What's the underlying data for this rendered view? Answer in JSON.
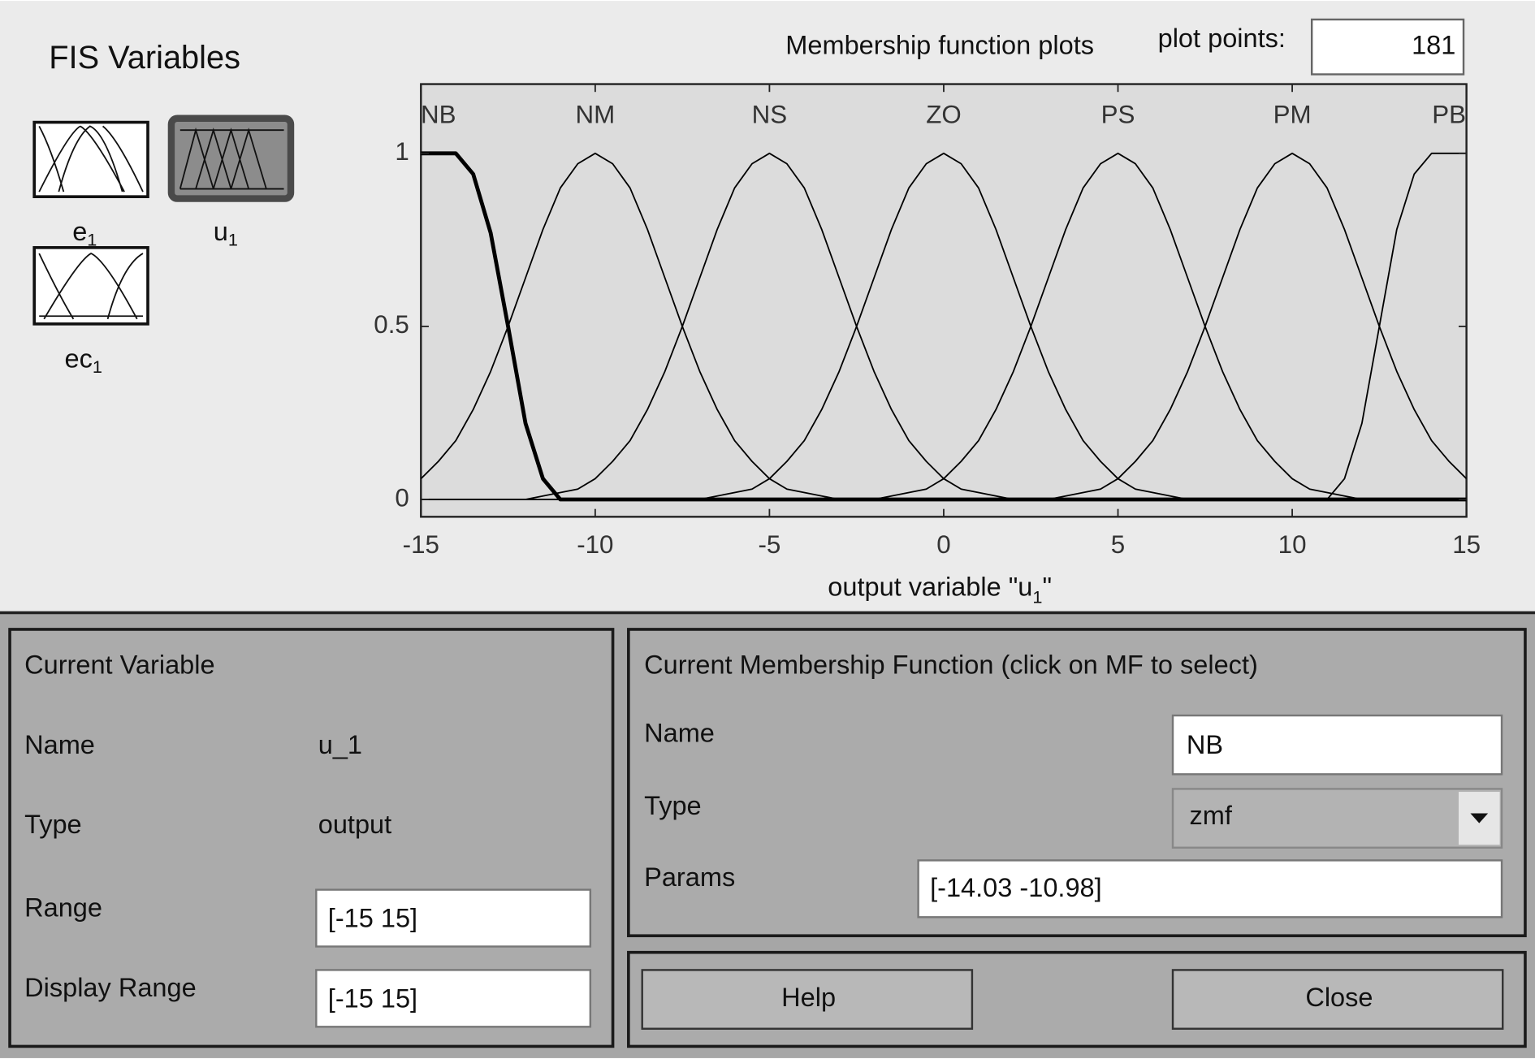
{
  "header": {
    "title": "FIS Variables"
  },
  "variables": [
    {
      "name": "e",
      "sub": "1"
    },
    {
      "name": "u",
      "sub": "1"
    },
    {
      "name": "ec",
      "sub": "1"
    }
  ],
  "plot_points": {
    "label": "plot points:",
    "value": "181"
  },
  "chart_data": {
    "type": "line",
    "title": "Membership function plots",
    "xlabel": [
      "output variable \"u",
      "1",
      "\""
    ],
    "x": [
      -15,
      -14.5,
      -14,
      -13.5,
      -13,
      -12.5,
      -12,
      -11.5,
      -11,
      -10.5,
      -10,
      -9.5,
      -9,
      -8.5,
      -8,
      -7.5,
      -7,
      -6.5,
      -6,
      -5.5,
      -5,
      -4.5,
      -4,
      -3.5,
      -3,
      -2.5,
      -2,
      -1.5,
      -1,
      -0.5,
      0,
      0.5,
      1,
      1.5,
      2,
      2.5,
      3,
      3.5,
      4,
      4.5,
      5,
      5.5,
      6,
      6.5,
      7,
      7.5,
      8,
      8.5,
      9,
      9.5,
      10,
      10.5,
      11,
      11.5,
      12,
      12.5,
      13,
      13.5,
      14,
      14.5,
      15
    ],
    "series": [
      {
        "name": "NB",
        "color": "#000000",
        "bold": true,
        "values": [
          1,
          1,
          1,
          0.94,
          0.77,
          0.5,
          0.22,
          0.06,
          0,
          0,
          0,
          0,
          0,
          0,
          0,
          0,
          0,
          0,
          0,
          0,
          0,
          0,
          0,
          0,
          0,
          0,
          0,
          0,
          0,
          0,
          0,
          0,
          0,
          0,
          0,
          0,
          0,
          0,
          0,
          0,
          0,
          0,
          0,
          0,
          0,
          0,
          0,
          0,
          0,
          0,
          0,
          0,
          0,
          0,
          0,
          0,
          0,
          0,
          0,
          0,
          0
        ]
      },
      {
        "name": "NM",
        "color": "#000000",
        "values": [
          0.06,
          0.11,
          0.17,
          0.26,
          0.37,
          0.5,
          0.64,
          0.78,
          0.9,
          0.97,
          1,
          0.97,
          0.9,
          0.78,
          0.64,
          0.5,
          0.37,
          0.26,
          0.17,
          0.11,
          0.06,
          0.03,
          0.02,
          0.01,
          0,
          0,
          0,
          0,
          0,
          0,
          0,
          0,
          0,
          0,
          0,
          0,
          0,
          0,
          0,
          0,
          0,
          0,
          0,
          0,
          0,
          0,
          0,
          0,
          0,
          0,
          0,
          0,
          0,
          0,
          0,
          0,
          0,
          0,
          0,
          0,
          0
        ]
      },
      {
        "name": "NS",
        "color": "#000000",
        "values": [
          0,
          0,
          0,
          0,
          0,
          0,
          0,
          0.01,
          0.02,
          0.03,
          0.06,
          0.11,
          0.17,
          0.26,
          0.37,
          0.5,
          0.64,
          0.78,
          0.9,
          0.97,
          1,
          0.97,
          0.9,
          0.78,
          0.64,
          0.5,
          0.37,
          0.26,
          0.17,
          0.11,
          0.06,
          0.03,
          0.02,
          0.01,
          0,
          0,
          0,
          0,
          0,
          0,
          0,
          0,
          0,
          0,
          0,
          0,
          0,
          0,
          0,
          0,
          0,
          0,
          0,
          0,
          0,
          0,
          0,
          0,
          0,
          0,
          0
        ]
      },
      {
        "name": "ZO",
        "color": "#000000",
        "values": [
          0,
          0,
          0,
          0,
          0,
          0,
          0,
          0,
          0,
          0,
          0,
          0,
          0,
          0,
          0,
          0,
          0,
          0.01,
          0.02,
          0.03,
          0.06,
          0.11,
          0.17,
          0.26,
          0.37,
          0.5,
          0.64,
          0.78,
          0.9,
          0.97,
          1,
          0.97,
          0.9,
          0.78,
          0.64,
          0.5,
          0.37,
          0.26,
          0.17,
          0.11,
          0.06,
          0.03,
          0.02,
          0.01,
          0,
          0,
          0,
          0,
          0,
          0,
          0,
          0,
          0,
          0,
          0,
          0,
          0,
          0,
          0,
          0,
          0
        ]
      },
      {
        "name": "PS",
        "color": "#000000",
        "values": [
          0,
          0,
          0,
          0,
          0,
          0,
          0,
          0,
          0,
          0,
          0,
          0,
          0,
          0,
          0,
          0,
          0,
          0,
          0,
          0,
          0,
          0,
          0,
          0,
          0,
          0,
          0,
          0.01,
          0.02,
          0.03,
          0.06,
          0.11,
          0.17,
          0.26,
          0.37,
          0.5,
          0.64,
          0.78,
          0.9,
          0.97,
          1,
          0.97,
          0.9,
          0.78,
          0.64,
          0.5,
          0.37,
          0.26,
          0.17,
          0.11,
          0.06,
          0.03,
          0.02,
          0.01,
          0,
          0,
          0,
          0,
          0,
          0,
          0
        ]
      },
      {
        "name": "PM",
        "color": "#000000",
        "values": [
          0,
          0,
          0,
          0,
          0,
          0,
          0,
          0,
          0,
          0,
          0,
          0,
          0,
          0,
          0,
          0,
          0,
          0,
          0,
          0,
          0,
          0,
          0,
          0,
          0,
          0,
          0,
          0,
          0,
          0,
          0,
          0,
          0,
          0,
          0,
          0,
          0,
          0.01,
          0.02,
          0.03,
          0.06,
          0.11,
          0.17,
          0.26,
          0.37,
          0.5,
          0.64,
          0.78,
          0.9,
          0.97,
          1,
          0.97,
          0.9,
          0.78,
          0.64,
          0.5,
          0.37,
          0.26,
          0.17,
          0.11,
          0.06
        ]
      },
      {
        "name": "PB",
        "color": "#000000",
        "values": [
          0,
          0,
          0,
          0,
          0,
          0,
          0,
          0,
          0,
          0,
          0,
          0,
          0,
          0,
          0,
          0,
          0,
          0,
          0,
          0,
          0,
          0,
          0,
          0,
          0,
          0,
          0,
          0,
          0,
          0,
          0,
          0,
          0,
          0,
          0,
          0,
          0,
          0,
          0,
          0,
          0,
          0,
          0,
          0,
          0,
          0,
          0,
          0,
          0,
          0,
          0,
          0,
          0,
          0.06,
          0.22,
          0.5,
          0.78,
          0.94,
          1,
          1,
          1
        ]
      }
    ],
    "xlim": [
      -15,
      15
    ],
    "xticks": [
      -15,
      -10,
      -5,
      0,
      5,
      10,
      15
    ],
    "ylim": [
      -0.05,
      1.2
    ],
    "yticks": [
      0,
      0.5,
      1
    ]
  },
  "current_variable": {
    "title": "Current Variable",
    "rows": [
      [
        "Name",
        "u_1"
      ],
      [
        "Type",
        "output"
      ],
      [
        "Range",
        "[-15 15]"
      ],
      [
        "Display Range",
        "[-15 15]"
      ]
    ]
  },
  "current_mf": {
    "title": "Current Membership Function (click on MF to select)",
    "rows": [
      [
        "Name",
        "NB"
      ],
      [
        "Type",
        "zmf"
      ],
      [
        "Params",
        "[-14.03 -10.98]"
      ]
    ]
  },
  "buttons": [
    "Help",
    "Close"
  ]
}
